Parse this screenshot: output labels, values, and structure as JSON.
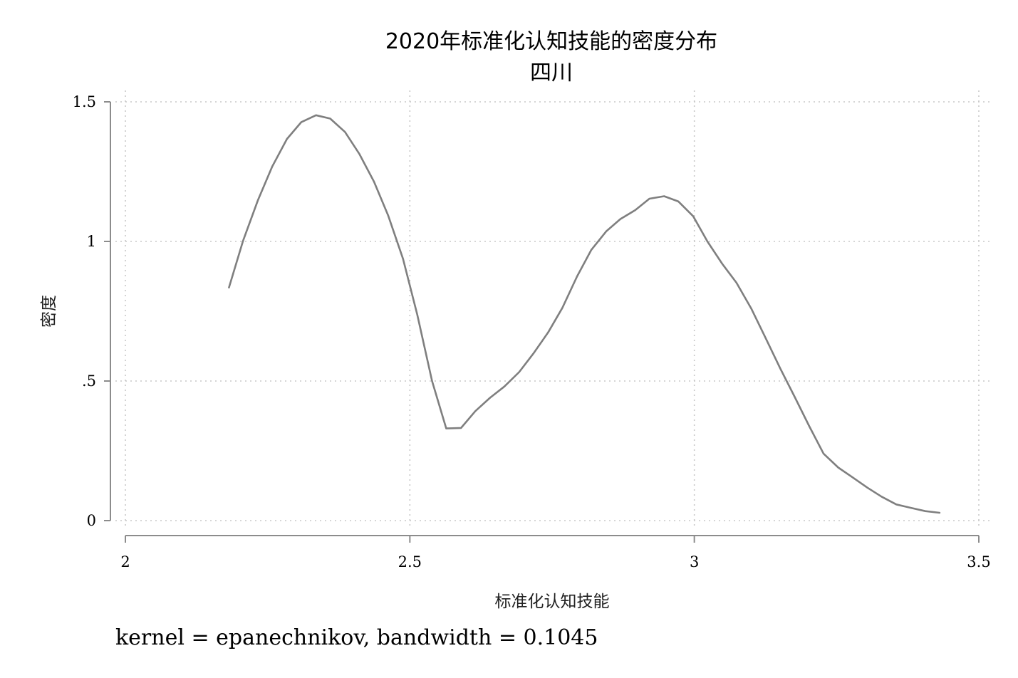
{
  "chart_data": {
    "type": "line",
    "title": "2020年标准化认知技能的密度分布",
    "subtitle": "四川",
    "xlabel": "标准化认知技能",
    "ylabel": "密度",
    "note": "kernel = epanechnikov, bandwidth = 0.1045",
    "xlim": [
      2,
      3.5
    ],
    "ylim": [
      0,
      1.5
    ],
    "x_ticks": [
      {
        "value": 2,
        "label": "2"
      },
      {
        "value": 2.5,
        "label": "2.5"
      },
      {
        "value": 3,
        "label": "3"
      },
      {
        "value": 3.5,
        "label": "3.5"
      }
    ],
    "y_ticks": [
      {
        "value": 0,
        "label": "0"
      },
      {
        "value": 0.5,
        "label": ".5"
      },
      {
        "value": 1,
        "label": "1"
      },
      {
        "value": 1.5,
        "label": "1.5"
      }
    ],
    "grid": true,
    "line_color": "#7f7f7f",
    "series": [
      {
        "x": [
          2.182,
          2.207,
          2.233,
          2.258,
          2.284,
          2.309,
          2.335,
          2.36,
          2.386,
          2.411,
          2.437,
          2.462,
          2.488,
          2.513,
          2.539,
          2.564,
          2.59,
          2.615,
          2.641,
          2.666,
          2.692,
          2.717,
          2.743,
          2.768,
          2.794,
          2.819,
          2.845,
          2.87,
          2.896,
          2.921,
          2.947,
          2.972,
          2.998,
          3.023,
          3.049,
          3.074,
          3.1,
          3.125,
          3.151,
          3.176,
          3.202,
          3.227,
          3.253,
          3.278,
          3.304,
          3.329,
          3.355,
          3.38,
          3.406,
          3.431
        ],
        "y": [
          0.835,
          1.003,
          1.148,
          1.268,
          1.367,
          1.427,
          1.452,
          1.44,
          1.392,
          1.314,
          1.214,
          1.092,
          0.938,
          0.738,
          0.5,
          0.33,
          0.332,
          0.392,
          0.44,
          0.48,
          0.532,
          0.598,
          0.674,
          0.762,
          0.875,
          0.97,
          1.036,
          1.08,
          1.112,
          1.153,
          1.162,
          1.143,
          1.09,
          1.0,
          0.92,
          0.852,
          0.76,
          0.655,
          0.545,
          0.445,
          0.338,
          0.24,
          0.19,
          0.155,
          0.118,
          0.086,
          0.058,
          0.046,
          0.034,
          0.028
        ]
      }
    ]
  }
}
